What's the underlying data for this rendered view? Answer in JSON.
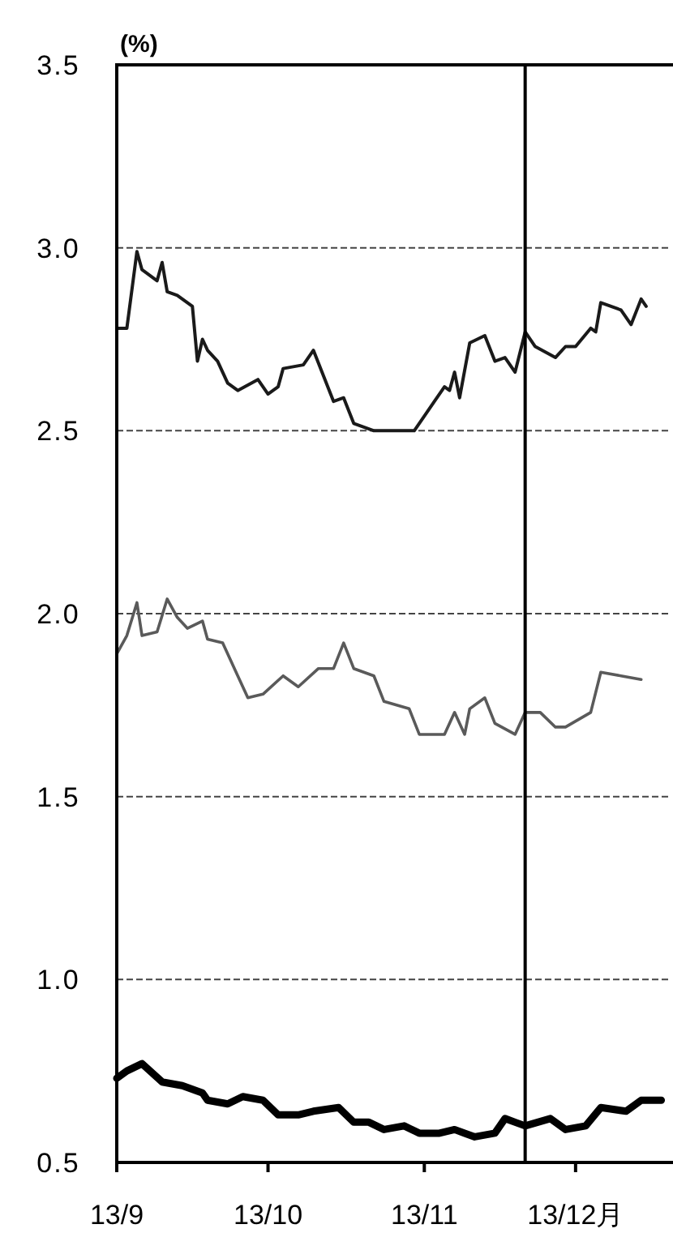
{
  "chart_data": {
    "type": "line",
    "ylabel": "(%)",
    "xlim": [
      "--09-01",
      "--12-20"
    ],
    "ylim": [
      0.5,
      3.5
    ],
    "yticks": [
      {
        "value": 0.5,
        "label": "0.5"
      },
      {
        "value": 1,
        "label": "1.0"
      },
      {
        "value": 1.5,
        "label": "1.5"
      },
      {
        "value": 2,
        "label": "2.0"
      },
      {
        "value": 2.5,
        "label": "2.5"
      },
      {
        "value": 3,
        "label": "3.0"
      },
      {
        "value": 3.5,
        "label": "3.5"
      }
    ],
    "xticks": [
      {
        "value": "--09-01",
        "label": "13/9"
      },
      {
        "value": "--10-01",
        "label": "13/10"
      },
      {
        "value": "--11-01",
        "label": "13/11"
      },
      {
        "value": "--12-01",
        "label": "13/12月"
      }
    ],
    "grid": "y",
    "marker": "none",
    "ref_lines": [
      {
        "axis": "x",
        "value": "--11-21",
        "color": "#000000"
      }
    ],
    "series": [
      {
        "color": "#1a1a1a",
        "x": [
          "--09-01",
          "--09-03",
          "--09-05",
          "--09-06",
          "--09-09",
          "--09-10",
          "--09-11",
          "--09-13",
          "--09-16",
          "--09-17",
          "--09-18",
          "--09-19",
          "--09-21",
          "--09-23",
          "--09-25",
          "--09-29",
          "--10-01",
          "--10-03",
          "--10-04",
          "--10-08",
          "--10-10",
          "--10-14",
          "--10-16",
          "--10-18",
          "--10-22",
          "--10-23",
          "--10-30",
          "--11-03",
          "--11-05",
          "--11-06",
          "--11-07",
          "--11-08",
          "--11-10",
          "--11-13",
          "--11-15",
          "--11-17",
          "--11-19",
          "--11-21",
          "--11-23",
          "--11-27",
          "--11-29",
          "--12-01",
          "--12-04",
          "--12-05",
          "--12-06",
          "--12-10",
          "--12-12",
          "--12-14",
          "--12-15"
        ],
        "values": [
          2.78,
          2.78,
          2.99,
          2.94,
          2.91,
          2.96,
          2.88,
          2.87,
          2.84,
          2.69,
          2.75,
          2.72,
          2.69,
          2.63,
          2.61,
          2.64,
          2.6,
          2.62,
          2.67,
          2.68,
          2.72,
          2.58,
          2.59,
          2.52,
          2.5,
          2.5,
          2.5,
          2.58,
          2.62,
          2.61,
          2.66,
          2.59,
          2.74,
          2.76,
          2.69,
          2.7,
          2.66,
          2.77,
          2.73,
          2.7,
          2.73,
          2.73,
          2.78,
          2.77,
          2.85,
          2.83,
          2.79,
          2.86,
          2.84
        ]
      },
      {
        "color": "#5a5a5a",
        "x": [
          "--09-01",
          "--09-03",
          "--09-05",
          "--09-06",
          "--09-09",
          "--09-11",
          "--09-13",
          "--09-15",
          "--09-18",
          "--09-19",
          "--09-22",
          "--09-25",
          "--09-27",
          "--09-30",
          "--10-04",
          "--10-07",
          "--10-11",
          "--10-14",
          "--10-16",
          "--10-18",
          "--10-22",
          "--10-24",
          "--10-29",
          "--10-31",
          "--11-05",
          "--11-07",
          "--11-09",
          "--11-10",
          "--11-13",
          "--11-15",
          "--11-19",
          "--11-21",
          "--11-24",
          "--11-27",
          "--11-29",
          "--12-04",
          "--12-06",
          "--12-10",
          "--12-14"
        ],
        "values": [
          1.89,
          1.94,
          2.03,
          1.94,
          1.95,
          2.04,
          1.99,
          1.96,
          1.98,
          1.93,
          1.92,
          1.83,
          1.77,
          1.78,
          1.83,
          1.8,
          1.85,
          1.85,
          1.92,
          1.85,
          1.83,
          1.76,
          1.74,
          1.67,
          1.67,
          1.73,
          1.67,
          1.74,
          1.77,
          1.7,
          1.67,
          1.73,
          1.73,
          1.69,
          1.69,
          1.73,
          1.84,
          1.83,
          1.82
        ]
      },
      {
        "color": "#000000",
        "x": [
          "--09-01",
          "--09-03",
          "--09-06",
          "--09-10",
          "--09-14",
          "--09-18",
          "--09-19",
          "--09-23",
          "--09-26",
          "--09-30",
          "--10-03",
          "--10-07",
          "--10-10",
          "--10-15",
          "--10-18",
          "--10-21",
          "--10-24",
          "--10-28",
          "--10-31",
          "--11-04",
          "--11-07",
          "--11-09",
          "--11-11",
          "--11-15",
          "--11-17",
          "--11-19",
          "--11-21",
          "--11-26",
          "--11-29",
          "--12-03",
          "--12-06",
          "--12-11",
          "--12-14",
          "--12-18"
        ],
        "values": [
          0.73,
          0.75,
          0.77,
          0.72,
          0.71,
          0.69,
          0.67,
          0.66,
          0.68,
          0.67,
          0.63,
          0.63,
          0.64,
          0.65,
          0.61,
          0.61,
          0.59,
          0.6,
          0.58,
          0.58,
          0.59,
          0.58,
          0.57,
          0.58,
          0.62,
          0.61,
          0.6,
          0.62,
          0.59,
          0.6,
          0.65,
          0.64,
          0.67,
          0.67
        ]
      }
    ]
  }
}
